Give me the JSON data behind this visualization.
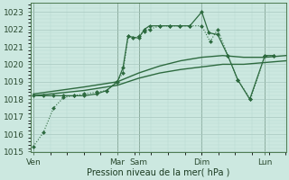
{
  "background_color": "#cce8e0",
  "grid_major_color": "#b8d8d0",
  "grid_minor_color": "#cce8e0",
  "line_color": "#2d6a3f",
  "ylabel": "Pression niveau de la mer( hPa )",
  "ylim": [
    1015,
    1023.5
  ],
  "yticks": [
    1015,
    1016,
    1017,
    1018,
    1019,
    1020,
    1021,
    1022,
    1023
  ],
  "day_labels": [
    "Ven",
    "Mar",
    "Sam",
    "Dim",
    "Lun"
  ],
  "day_positions": [
    0.0,
    0.333,
    0.417,
    0.667,
    0.917
  ],
  "total_width": 1.0,
  "series": [
    {
      "x": [
        0.0,
        0.04,
        0.08,
        0.12,
        0.16,
        0.2,
        0.25,
        0.29,
        0.33,
        0.355,
        0.375,
        0.395,
        0.417,
        0.44,
        0.46,
        0.5,
        0.54,
        0.58,
        0.62,
        0.667,
        0.7,
        0.73,
        0.77,
        0.81,
        0.86,
        0.917,
        0.95
      ],
      "y": [
        1015.3,
        1016.1,
        1017.5,
        1018.1,
        1018.2,
        1018.3,
        1018.4,
        1018.5,
        1019.0,
        1019.5,
        1021.6,
        1021.5,
        1021.6,
        1021.9,
        1022.0,
        1022.2,
        1022.2,
        1022.2,
        1022.2,
        1022.2,
        1021.3,
        1022.0,
        1020.5,
        1019.1,
        1018.0,
        1020.5,
        1020.5
      ],
      "style": "dotted",
      "marker": "D",
      "markersize": 2.0,
      "linewidth": 0.8
    },
    {
      "x": [
        0.0,
        0.1,
        0.2,
        0.333,
        0.417,
        0.5,
        0.583,
        0.667,
        0.75,
        0.833,
        0.917,
        1.0
      ],
      "y": [
        1018.2,
        1018.35,
        1018.5,
        1018.8,
        1019.2,
        1019.5,
        1019.7,
        1019.85,
        1020.0,
        1020.0,
        1020.1,
        1020.2
      ],
      "style": "solid",
      "marker": null,
      "markersize": 0,
      "linewidth": 1.0
    },
    {
      "x": [
        0.0,
        0.1,
        0.2,
        0.333,
        0.417,
        0.5,
        0.583,
        0.667,
        0.75,
        0.833,
        0.917,
        1.0
      ],
      "y": [
        1018.3,
        1018.5,
        1018.7,
        1019.0,
        1019.5,
        1019.9,
        1020.2,
        1020.4,
        1020.5,
        1020.4,
        1020.4,
        1020.5
      ],
      "style": "solid",
      "marker": null,
      "markersize": 0,
      "linewidth": 1.0
    },
    {
      "x": [
        0.0,
        0.04,
        0.08,
        0.12,
        0.16,
        0.2,
        0.25,
        0.29,
        0.333,
        0.355,
        0.375,
        0.417,
        0.44,
        0.46,
        0.5,
        0.54,
        0.58,
        0.62,
        0.667,
        0.695,
        0.73,
        0.77,
        0.81,
        0.857,
        0.917,
        0.95
      ],
      "y": [
        1018.2,
        1018.2,
        1018.2,
        1018.2,
        1018.2,
        1018.2,
        1018.3,
        1018.5,
        1019.0,
        1019.8,
        1021.6,
        1021.5,
        1022.0,
        1022.2,
        1022.2,
        1022.2,
        1022.2,
        1022.2,
        1023.0,
        1021.8,
        1021.7,
        1020.5,
        1019.1,
        1018.0,
        1020.5,
        1020.5
      ],
      "style": "solid",
      "marker": "D",
      "markersize": 2.0,
      "linewidth": 0.9
    }
  ],
  "figsize": [
    3.2,
    2.0
  ],
  "dpi": 100
}
